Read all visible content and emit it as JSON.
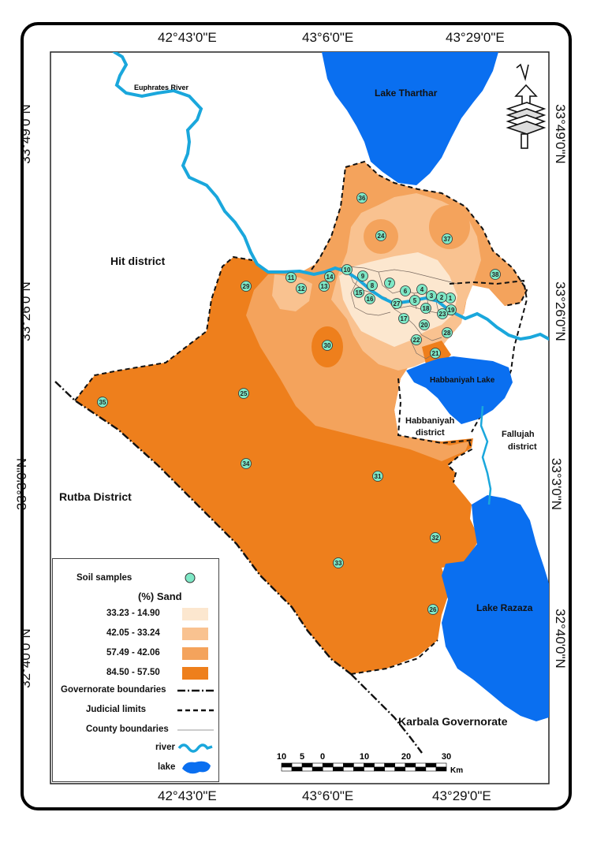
{
  "coords": {
    "top": [
      "42°43'0\"E",
      "43°6'0\"E",
      "43°29'0\"E"
    ],
    "bottom": [
      "42°43'0\"E",
      "43°6'0\"E",
      "43°29'0\"E"
    ],
    "left": [
      "33°49'0\"N",
      "33°26'0\"N",
      "33°3'0\"N",
      "32°40'0\"N"
    ],
    "right": [
      "33°49'0\"N",
      "33°26'0\"N",
      "33°3'0\"N",
      "32°40'0\"N"
    ]
  },
  "labels": {
    "euphrates": "Euphrates River",
    "lake_tharthar": "Lake Tharthar",
    "hit": "Hit district",
    "rutba": "Rutba District",
    "habbaniyah_lake": "Habbaniyah Lake",
    "habbaniyah_district_1": "Habbaniyah",
    "habbaniyah_district_2": "district",
    "fallujah_1": "Fallujah",
    "fallujah_2": "district",
    "lake_razaza": "Lake Razaza",
    "karbala": "Karbala Governorate"
  },
  "samples": [
    "1",
    "2",
    "3",
    "4",
    "5",
    "6",
    "7",
    "8",
    "9",
    "10",
    "11",
    "12",
    "13",
    "14",
    "15",
    "16",
    "17",
    "18",
    "19",
    "20",
    "21",
    "22",
    "23",
    "24",
    "25",
    "26",
    "27",
    "28",
    "29",
    "30",
    "31",
    "32",
    "33",
    "34",
    "35",
    "36",
    "37",
    "38"
  ],
  "legend": {
    "soil_samples": "Soil samples",
    "sand_title": "(%) Sand",
    "classes": [
      {
        "label": "33.23 - 14.90",
        "color": "#fce7cf"
      },
      {
        "label": "42.05 - 33.24",
        "color": "#f9c290"
      },
      {
        "label": "57.49 - 42.06",
        "color": "#f4a35c"
      },
      {
        "label": "84.50 - 57.50",
        "color": "#ee7f1c"
      }
    ],
    "governorate": "Governorate boundaries",
    "judicial": "Judicial limits",
    "county": "County boundaries",
    "river": "river",
    "lake": "lake"
  },
  "scale": {
    "ticks": [
      "10",
      "5",
      "0",
      "10",
      "20",
      "30"
    ],
    "unit": "Km"
  },
  "colors": {
    "lake": "#0a6ff0",
    "river": "#1aa7dc",
    "sample_fill": "#7ee8c6"
  }
}
